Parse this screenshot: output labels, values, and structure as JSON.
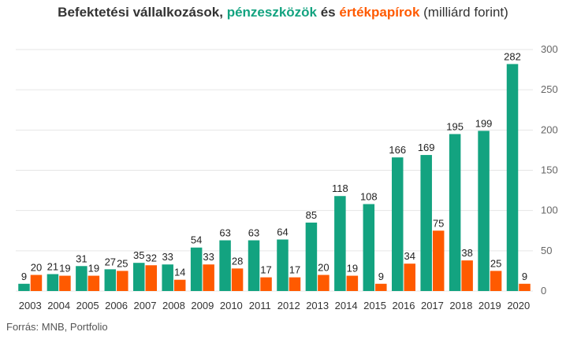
{
  "title": {
    "part1": "Befektetési vállalkozások, ",
    "part2": "pénzeszközök",
    "part3": " és ",
    "part4": "értékpapírok",
    "part5": " (milliárd forint)"
  },
  "source": "Forrás: MNB, Portfolio",
  "colors": {
    "series1": "#13a380",
    "series2": "#ff5a00",
    "grid": "#e6e6e6"
  },
  "chart_data": {
    "type": "bar",
    "categories": [
      "2003",
      "2004",
      "2005",
      "2006",
      "2007",
      "2008",
      "2009",
      "2010",
      "2011",
      "2012",
      "2013",
      "2014",
      "2015",
      "2016",
      "2017",
      "2018",
      "2019",
      "2020"
    ],
    "series": [
      {
        "name": "pénzeszközök",
        "values": [
          9,
          21,
          31,
          27,
          35,
          33,
          54,
          63,
          63,
          64,
          85,
          118,
          108,
          166,
          169,
          195,
          199,
          282
        ]
      },
      {
        "name": "értékpapírok",
        "values": [
          20,
          19,
          19,
          25,
          32,
          14,
          33,
          28,
          17,
          17,
          20,
          19,
          9,
          34,
          75,
          38,
          25,
          9
        ]
      }
    ],
    "yticks": [
      0,
      50,
      100,
      150,
      200,
      250,
      300
    ],
    "ylim": [
      0,
      300
    ],
    "grid": true,
    "y_axis_side": "right"
  }
}
